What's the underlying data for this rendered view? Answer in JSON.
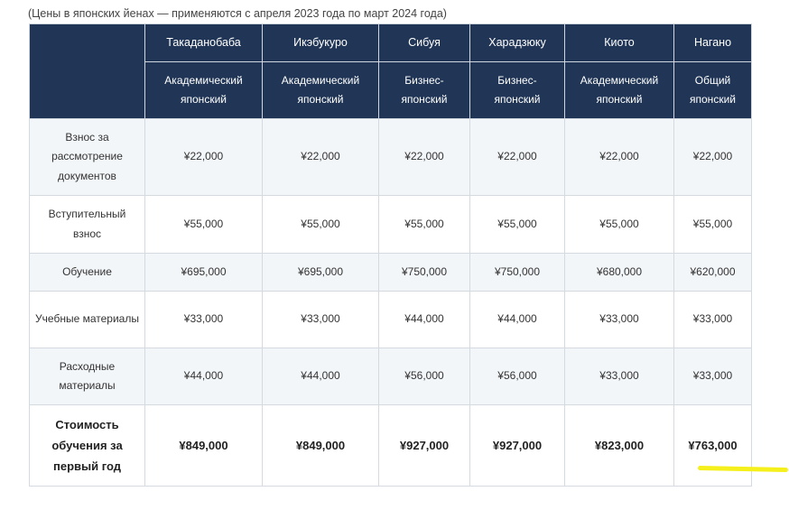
{
  "caption": "(Цены в японских йенах — применяются с апреля 2023 года по март 2024 года)",
  "table": {
    "campuses": [
      "Такаданобаба",
      "Икэбукуро",
      "Сибуя",
      "Харадзюку",
      "Киото",
      "Нагано"
    ],
    "courses": [
      "Академический японский",
      "Академический японский",
      "Бизнес-японский",
      "Бизнес-японский",
      "Академический японский",
      "Общий японский"
    ],
    "rows": [
      {
        "label": "Взнос за рассмотрение документов",
        "values": [
          "¥22,000",
          "¥22,000",
          "¥22,000",
          "¥22,000",
          "¥22,000",
          "¥22,000"
        ]
      },
      {
        "label": "Вступительный взнос",
        "values": [
          "¥55,000",
          "¥55,000",
          "¥55,000",
          "¥55,000",
          "¥55,000",
          "¥55,000"
        ]
      },
      {
        "label": "Обучение",
        "values": [
          "¥695,000",
          "¥695,000",
          "¥750,000",
          "¥750,000",
          "¥680,000",
          "¥620,000"
        ]
      },
      {
        "label": "Учебные материалы",
        "values": [
          "¥33,000",
          "¥33,000",
          "¥44,000",
          "¥44,000",
          "¥33,000",
          "¥33,000"
        ]
      },
      {
        "label": "Расходные материалы",
        "values": [
          "¥44,000",
          "¥44,000",
          "¥56,000",
          "¥56,000",
          "¥33,000",
          "¥33,000"
        ]
      },
      {
        "label": "Стоимость обучения за первый год",
        "values": [
          "¥849,000",
          "¥849,000",
          "¥927,000",
          "¥927,000",
          "¥823,000",
          "¥763,000"
        ]
      }
    ]
  },
  "colors": {
    "header_bg": "#213656",
    "highlight": "#f5ef1c"
  }
}
